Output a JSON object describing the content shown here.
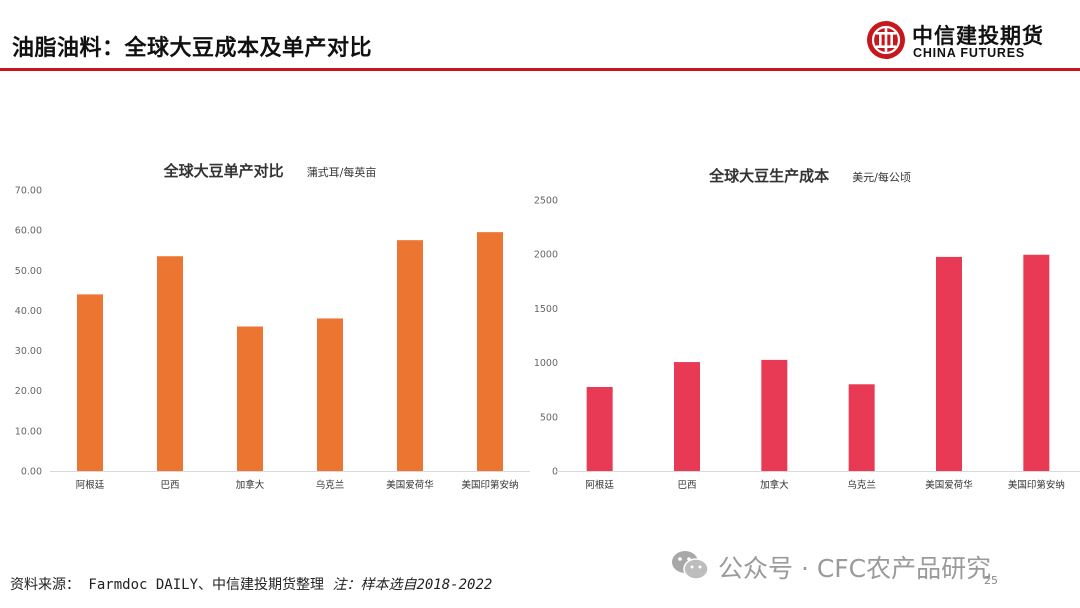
{
  "header": {
    "title": "油脂油料：全球大豆成本及单产对比",
    "logo_cn": "中信建投期货",
    "logo_en": "CHINA FUTURES"
  },
  "colors": {
    "accent": "#c8161d",
    "bar_yield": "#ed7532",
    "bar_cost": "#e83a55"
  },
  "chart_data": [
    {
      "type": "bar",
      "title": "全球大豆单产对比",
      "unit": "蒲式耳/每英亩",
      "categories": [
        "阿根廷",
        "巴西",
        "加拿大",
        "乌克兰",
        "美国爱荷华",
        "美国印第安纳"
      ],
      "values": [
        44.0,
        53.5,
        36.0,
        38.0,
        57.5,
        59.5
      ],
      "ylim": [
        0,
        70
      ],
      "yticks": [
        0,
        10,
        20,
        30,
        40,
        50,
        60,
        70
      ],
      "ytick_labels": [
        "0.00",
        "10.00",
        "20.00",
        "30.00",
        "40.00",
        "50.00",
        "60.00",
        "70.00"
      ],
      "grid": false
    },
    {
      "type": "bar",
      "title": "全球大豆生产成本",
      "unit": "美元/每公顷",
      "categories": [
        "阿根廷",
        "巴西",
        "加拿大",
        "乌克兰",
        "美国爱荷华",
        "美国印第安纳"
      ],
      "values": [
        775,
        1005,
        1025,
        800,
        1975,
        1995
      ],
      "ylim": [
        0,
        2500
      ],
      "yticks": [
        0,
        500,
        1000,
        1500,
        2000,
        2500
      ],
      "ytick_labels": [
        "0",
        "500",
        "1000",
        "1500",
        "2000",
        "2500"
      ],
      "grid": false
    }
  ],
  "footer": {
    "source": "资料来源： Farmdoc DAILY、中信建投期货整理",
    "note": "注：样本选自2018-2022"
  },
  "watermark": {
    "text": "公众号 · CFC农产品研究"
  },
  "page_number": "25"
}
